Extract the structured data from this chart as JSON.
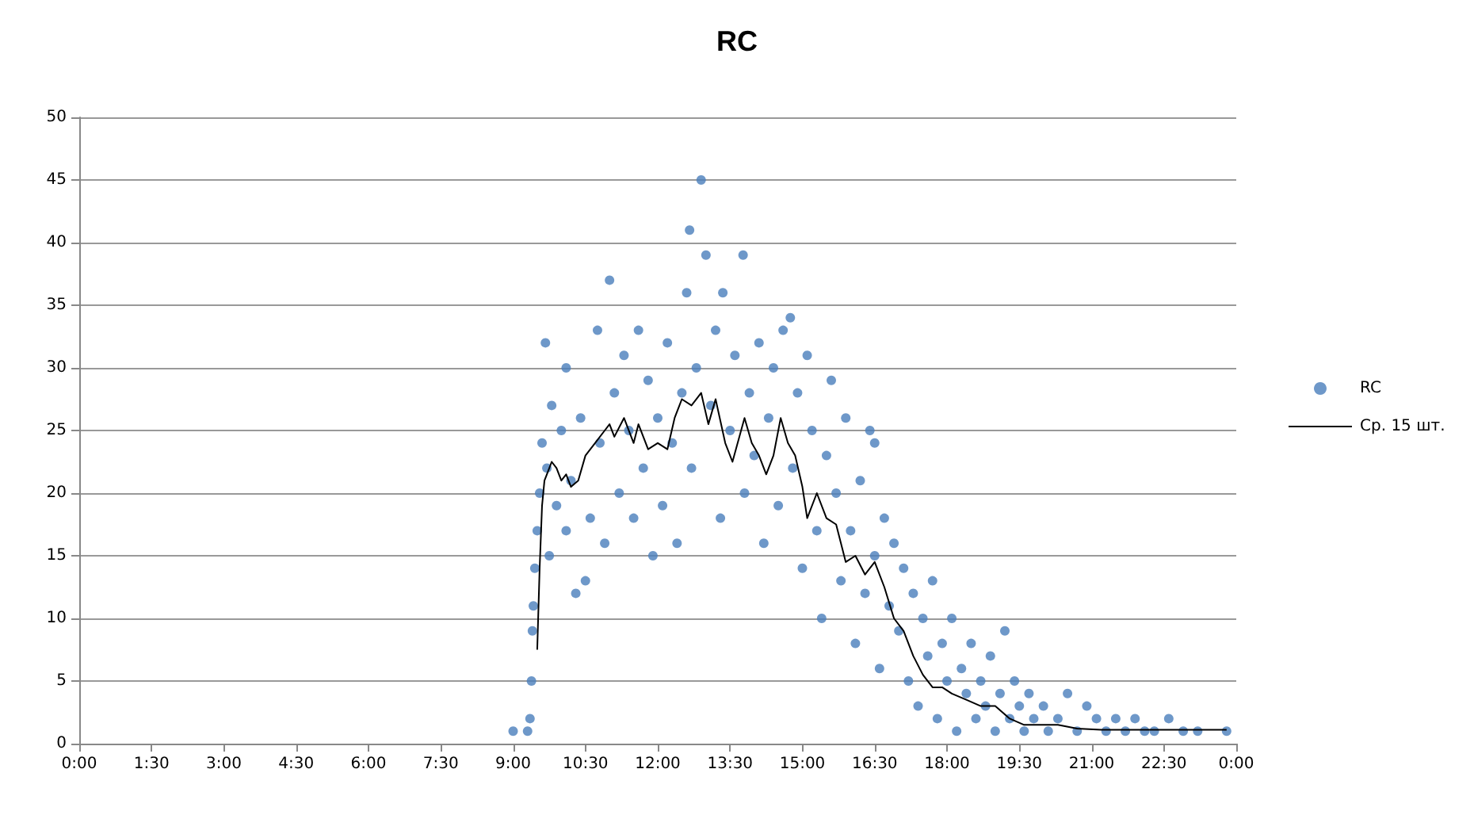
{
  "chart_data": {
    "type": "scatter",
    "title": "RC",
    "xlim": [
      0,
      24
    ],
    "ylim": [
      0,
      50
    ],
    "xticks": [
      {
        "value": 0,
        "label": "0:00"
      },
      {
        "value": 1.5,
        "label": "1:30"
      },
      {
        "value": 3,
        "label": "3:00"
      },
      {
        "value": 4.5,
        "label": "4:30"
      },
      {
        "value": 6,
        "label": "6:00"
      },
      {
        "value": 7.5,
        "label": "7:30"
      },
      {
        "value": 9,
        "label": "9:00"
      },
      {
        "value": 10.5,
        "label": "10:30"
      },
      {
        "value": 12,
        "label": "12:00"
      },
      {
        "value": 13.5,
        "label": "13:30"
      },
      {
        "value": 15,
        "label": "15:00"
      },
      {
        "value": 16.5,
        "label": "16:30"
      },
      {
        "value": 18,
        "label": "18:00"
      },
      {
        "value": 19.5,
        "label": "19:30"
      },
      {
        "value": 21,
        "label": "21:00"
      },
      {
        "value": 22.5,
        "label": "22:30"
      },
      {
        "value": 24,
        "label": "0:00"
      }
    ],
    "yticks": [
      0,
      5,
      10,
      15,
      20,
      25,
      30,
      35,
      40,
      45,
      50
    ],
    "grid": "y",
    "legend": "right",
    "series": [
      {
        "name": "RC",
        "type": "scatter",
        "marker": "circle",
        "color": "#4a7ebb",
        "x": [
          9.0,
          9.3,
          9.35,
          9.38,
          9.4,
          9.42,
          9.45,
          9.5,
          9.55,
          9.6,
          9.67,
          9.7,
          9.75,
          9.8,
          9.9,
          10.0,
          10.1,
          10.1,
          10.2,
          10.3,
          10.4,
          10.5,
          10.6,
          10.75,
          10.8,
          10.9,
          11.0,
          11.1,
          11.2,
          11.3,
          11.4,
          11.5,
          11.6,
          11.7,
          11.8,
          11.9,
          12.0,
          12.1,
          12.2,
          12.3,
          12.4,
          12.5,
          12.6,
          12.66,
          12.7,
          12.8,
          12.9,
          13.0,
          13.1,
          13.2,
          13.3,
          13.35,
          13.5,
          13.6,
          13.77,
          13.8,
          13.9,
          14.0,
          14.1,
          14.2,
          14.3,
          14.4,
          14.5,
          14.6,
          14.75,
          14.8,
          14.9,
          15.0,
          15.1,
          15.2,
          15.3,
          15.4,
          15.5,
          15.6,
          15.7,
          15.8,
          15.9,
          16.0,
          16.1,
          16.2,
          16.3,
          16.4,
          16.5,
          16.5,
          16.6,
          16.7,
          16.8,
          16.9,
          17.0,
          17.1,
          17.2,
          17.3,
          17.4,
          17.5,
          17.6,
          17.7,
          17.8,
          17.9,
          18.0,
          18.1,
          18.2,
          18.3,
          18.4,
          18.5,
          18.6,
          18.7,
          18.8,
          18.9,
          19.0,
          19.1,
          19.2,
          19.3,
          19.4,
          19.5,
          19.6,
          19.7,
          19.8,
          20.0,
          20.1,
          20.3,
          20.5,
          20.7,
          20.9,
          21.1,
          21.3,
          21.5,
          21.7,
          21.9,
          22.1,
          22.3,
          22.6,
          22.9,
          23.2,
          23.8
        ],
        "values": [
          1,
          1,
          2,
          5,
          9,
          11,
          14,
          17,
          20,
          24,
          32,
          22,
          15,
          27,
          19,
          25,
          30,
          17,
          21,
          12,
          26,
          13,
          18,
          33,
          24,
          16,
          37,
          28,
          20,
          31,
          25,
          18,
          33,
          22,
          29,
          15,
          26,
          19,
          32,
          24,
          16,
          28,
          36,
          41,
          22,
          30,
          45,
          39,
          27,
          33,
          18,
          36,
          25,
          31,
          39,
          20,
          28,
          23,
          32,
          16,
          26,
          30,
          19,
          33,
          34,
          22,
          28,
          14,
          31,
          25,
          17,
          10,
          23,
          29,
          20,
          13,
          26,
          17,
          8,
          21,
          12,
          25,
          24,
          15,
          6,
          18,
          11,
          16,
          9,
          14,
          5,
          12,
          3,
          10,
          7,
          13,
          2,
          8,
          5,
          10,
          1,
          6,
          4,
          8,
          2,
          5,
          3,
          7,
          1,
          4,
          9,
          2,
          5,
          3,
          1,
          4,
          2,
          3,
          1,
          2,
          4,
          1,
          3,
          2,
          1,
          2,
          1,
          2,
          1,
          1,
          2,
          1,
          1,
          1
        ]
      },
      {
        "name": "Ср. 15 шт.",
        "type": "line",
        "marker": "none",
        "line_style": "solid",
        "color": "#000000",
        "x": [
          9.5,
          9.55,
          9.6,
          9.65,
          9.7,
          9.8,
          9.9,
          10.0,
          10.1,
          10.2,
          10.35,
          10.5,
          10.7,
          10.9,
          11.0,
          11.1,
          11.3,
          11.5,
          11.6,
          11.8,
          12.0,
          12.2,
          12.35,
          12.5,
          12.7,
          12.9,
          13.05,
          13.2,
          13.4,
          13.55,
          13.8,
          13.95,
          14.1,
          14.25,
          14.4,
          14.55,
          14.7,
          14.85,
          15.0,
          15.1,
          15.3,
          15.5,
          15.7,
          15.9,
          16.1,
          16.3,
          16.5,
          16.7,
          16.9,
          17.1,
          17.3,
          17.5,
          17.7,
          17.9,
          18.1,
          18.4,
          18.7,
          19.0,
          19.3,
          19.6,
          19.9,
          20.3,
          20.7,
          21.2,
          22.0,
          23.8
        ],
        "values": [
          7.5,
          14,
          19,
          21,
          21.5,
          22.5,
          22,
          21,
          21.5,
          20.5,
          21,
          23,
          24,
          25,
          25.5,
          24.5,
          26,
          24,
          25.5,
          23.5,
          24,
          23.5,
          26,
          27.5,
          27,
          28,
          25.5,
          27.5,
          24,
          22.5,
          26,
          24,
          23,
          21.5,
          23,
          26,
          24,
          23,
          20.5,
          18,
          20,
          18,
          17.5,
          14.5,
          15,
          13.5,
          14.5,
          12.5,
          10,
          9,
          7,
          5.5,
          4.5,
          4.5,
          4,
          3.5,
          3,
          3,
          2,
          1.5,
          1.5,
          1.5,
          1.2,
          1.1,
          1.1,
          1.1
        ]
      }
    ]
  }
}
